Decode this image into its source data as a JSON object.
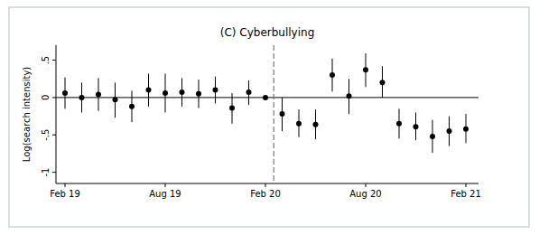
{
  "chart_data": {
    "type": "scatter",
    "title": "(C) Cyberbullying",
    "y_label": "Log(search intensity)",
    "categories": [
      "Feb 19",
      null,
      null,
      null,
      null,
      null,
      "Aug 19",
      null,
      null,
      null,
      null,
      null,
      "Feb 20",
      null,
      null,
      null,
      null,
      null,
      "Aug 20",
      null,
      null,
      null,
      null,
      null,
      "Feb 21"
    ],
    "values": [
      0.06,
      0.0,
      0.04,
      -0.03,
      -0.12,
      0.1,
      0.06,
      0.07,
      0.05,
      0.1,
      -0.14,
      0.07,
      0.0,
      -0.22,
      -0.35,
      -0.36,
      0.3,
      0.02,
      0.37,
      0.2,
      -0.35,
      -0.39,
      -0.52,
      -0.45,
      -0.42
    ],
    "lower": [
      -0.15,
      -0.2,
      -0.18,
      -0.27,
      -0.33,
      -0.12,
      -0.2,
      -0.12,
      -0.14,
      -0.08,
      -0.35,
      -0.1,
      null,
      -0.45,
      -0.53,
      -0.56,
      0.08,
      -0.22,
      0.14,
      0.0,
      -0.55,
      -0.57,
      -0.74,
      -0.65,
      -0.61
    ],
    "upper": [
      0.27,
      0.2,
      0.26,
      0.2,
      0.09,
      0.32,
      0.32,
      0.26,
      0.24,
      0.28,
      0.06,
      0.23,
      null,
      0.0,
      -0.16,
      -0.16,
      0.52,
      0.25,
      0.59,
      0.42,
      -0.15,
      -0.2,
      -0.3,
      -0.25,
      -0.22
    ],
    "color": "#000000",
    "marker": "circle",
    "ylim": [
      -1.15,
      0.7
    ],
    "yticks": [
      -1,
      {
        "value": -0.5,
        "label": "-.5"
      },
      0,
      {
        "value": 0.5,
        "label": ".5"
      }
    ]
  }
}
